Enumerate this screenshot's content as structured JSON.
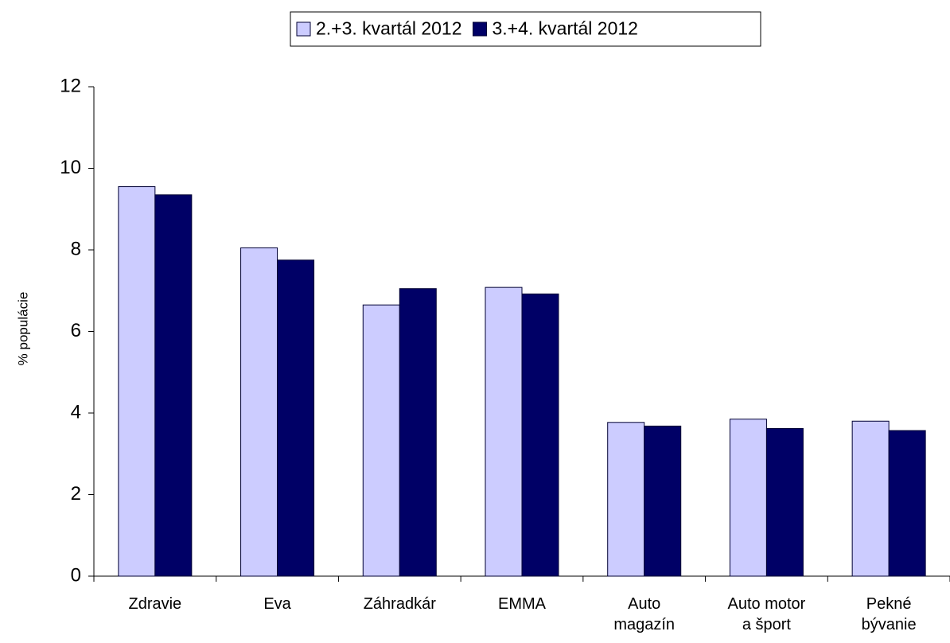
{
  "chart_data": {
    "type": "bar",
    "y_label": "% populácie",
    "categories": [
      "Zdravie",
      "Eva",
      "Záhradkár",
      "EMMA",
      "Auto magazín",
      "Auto motor a šport",
      "Pekné bývanie"
    ],
    "series": [
      {
        "name": "2.+3. kvartál 2012",
        "color": "#ccccff",
        "values": [
          9.55,
          8.05,
          6.65,
          7.08,
          3.77,
          3.85,
          3.8
        ]
      },
      {
        "name": "3.+4. kvartál 2012",
        "color": "#000066",
        "values": [
          9.35,
          7.75,
          7.05,
          6.92,
          3.68,
          3.62,
          3.57
        ]
      }
    ],
    "ylim": [
      0,
      12
    ],
    "yticks": [
      0,
      2,
      4,
      6,
      8,
      10,
      12
    ],
    "grid": false,
    "legend": "top"
  }
}
